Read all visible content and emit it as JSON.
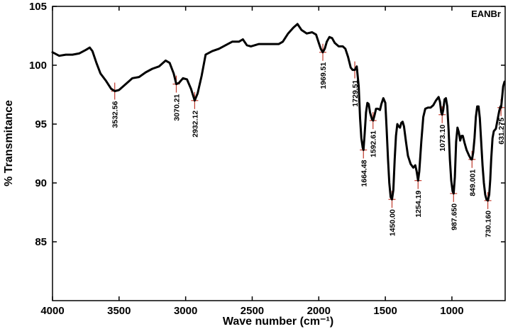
{
  "chart_data": {
    "type": "line",
    "title": "",
    "xlabel": "Wave number (cm⁻¹)",
    "ylabel": "% Transmitance",
    "xlim": [
      4000,
      600
    ],
    "ylim": [
      80,
      105
    ],
    "x_axis_reversed": true,
    "x_ticks": [
      4000,
      3500,
      3000,
      2500,
      2000,
      1500,
      1000
    ],
    "y_ticks": [
      85,
      90,
      95,
      100,
      105
    ],
    "grid": false,
    "legend_label": "EANBr",
    "legend_position": "top-right",
    "line_color": "#000000",
    "marker_color": "#c0392b",
    "series": [
      {
        "name": "EANBr",
        "points": [
          [
            4000,
            101.1
          ],
          [
            3950,
            100.8
          ],
          [
            3900,
            100.9
          ],
          [
            3850,
            100.9
          ],
          [
            3800,
            101.0
          ],
          [
            3750,
            101.3
          ],
          [
            3720,
            101.5
          ],
          [
            3700,
            101.2
          ],
          [
            3670,
            100.2
          ],
          [
            3640,
            99.3
          ],
          [
            3600,
            98.7
          ],
          [
            3560,
            98.0
          ],
          [
            3532,
            97.8
          ],
          [
            3500,
            97.9
          ],
          [
            3450,
            98.4
          ],
          [
            3400,
            98.9
          ],
          [
            3350,
            99.0
          ],
          [
            3300,
            99.4
          ],
          [
            3250,
            99.7
          ],
          [
            3200,
            99.9
          ],
          [
            3150,
            100.4
          ],
          [
            3120,
            100.2
          ],
          [
            3090,
            99.3
          ],
          [
            3070,
            98.4
          ],
          [
            3050,
            98.5
          ],
          [
            3020,
            98.9
          ],
          [
            2990,
            98.8
          ],
          [
            2960,
            98.0
          ],
          [
            2932,
            97.0
          ],
          [
            2910,
            97.6
          ],
          [
            2880,
            99.1
          ],
          [
            2850,
            100.9
          ],
          [
            2800,
            101.2
          ],
          [
            2750,
            101.4
          ],
          [
            2700,
            101.7
          ],
          [
            2650,
            102.0
          ],
          [
            2600,
            102.0
          ],
          [
            2570,
            102.2
          ],
          [
            2540,
            101.7
          ],
          [
            2510,
            101.6
          ],
          [
            2450,
            101.8
          ],
          [
            2400,
            101.8
          ],
          [
            2350,
            101.8
          ],
          [
            2300,
            101.8
          ],
          [
            2270,
            102.0
          ],
          [
            2230,
            102.7
          ],
          [
            2190,
            103.2
          ],
          [
            2160,
            103.5
          ],
          [
            2130,
            103.0
          ],
          [
            2090,
            102.7
          ],
          [
            2050,
            102.8
          ],
          [
            2020,
            102.6
          ],
          [
            2000,
            101.9
          ],
          [
            1985,
            101.4
          ],
          [
            1970,
            101.1
          ],
          [
            1955,
            101.4
          ],
          [
            1940,
            102.0
          ],
          [
            1920,
            102.4
          ],
          [
            1900,
            102.3
          ],
          [
            1880,
            101.9
          ],
          [
            1850,
            101.6
          ],
          [
            1820,
            101.6
          ],
          [
            1800,
            101.4
          ],
          [
            1780,
            100.7
          ],
          [
            1760,
            99.8
          ],
          [
            1745,
            99.6
          ],
          [
            1730,
            99.6
          ],
          [
            1715,
            99.9
          ],
          [
            1700,
            98.2
          ],
          [
            1690,
            95.5
          ],
          [
            1680,
            93.8
          ],
          [
            1670,
            93.0
          ],
          [
            1664,
            92.8
          ],
          [
            1655,
            94.2
          ],
          [
            1645,
            96.0
          ],
          [
            1635,
            96.8
          ],
          [
            1625,
            96.7
          ],
          [
            1615,
            96.0
          ],
          [
            1600,
            95.4
          ],
          [
            1592,
            95.3
          ],
          [
            1580,
            95.8
          ],
          [
            1570,
            96.3
          ],
          [
            1555,
            96.3
          ],
          [
            1540,
            96.2
          ],
          [
            1530,
            96.7
          ],
          [
            1515,
            97.2
          ],
          [
            1500,
            96.8
          ],
          [
            1490,
            94.5
          ],
          [
            1480,
            92.0
          ],
          [
            1470,
            90.0
          ],
          [
            1460,
            88.8
          ],
          [
            1450,
            88.6
          ],
          [
            1440,
            89.4
          ],
          [
            1430,
            92.0
          ],
          [
            1420,
            94.0
          ],
          [
            1410,
            95.0
          ],
          [
            1400,
            94.8
          ],
          [
            1390,
            94.7
          ],
          [
            1380,
            95.1
          ],
          [
            1370,
            95.2
          ],
          [
            1360,
            94.8
          ],
          [
            1345,
            93.5
          ],
          [
            1330,
            92.3
          ],
          [
            1310,
            91.6
          ],
          [
            1290,
            91.3
          ],
          [
            1275,
            91.5
          ],
          [
            1265,
            91.0
          ],
          [
            1254,
            90.2
          ],
          [
            1245,
            91.0
          ],
          [
            1230,
            93.5
          ],
          [
            1215,
            95.6
          ],
          [
            1200,
            96.3
          ],
          [
            1180,
            96.4
          ],
          [
            1160,
            96.4
          ],
          [
            1140,
            96.6
          ],
          [
            1120,
            97.0
          ],
          [
            1100,
            97.3
          ],
          [
            1090,
            96.9
          ],
          [
            1080,
            96.0
          ],
          [
            1073,
            95.8
          ],
          [
            1065,
            96.2
          ],
          [
            1055,
            97.1
          ],
          [
            1045,
            97.2
          ],
          [
            1035,
            96.5
          ],
          [
            1025,
            94.5
          ],
          [
            1015,
            92.0
          ],
          [
            1005,
            90.2
          ],
          [
            995,
            89.3
          ],
          [
            987,
            89.1
          ],
          [
            978,
            90.5
          ],
          [
            968,
            93.5
          ],
          [
            958,
            94.7
          ],
          [
            948,
            94.3
          ],
          [
            938,
            93.6
          ],
          [
            928,
            94.0
          ],
          [
            918,
            94.0
          ],
          [
            905,
            93.4
          ],
          [
            890,
            92.8
          ],
          [
            870,
            92.3
          ],
          [
            855,
            92.0
          ],
          [
            849,
            92.0
          ],
          [
            840,
            92.6
          ],
          [
            830,
            93.8
          ],
          [
            820,
            95.6
          ],
          [
            810,
            96.5
          ],
          [
            800,
            96.5
          ],
          [
            790,
            95.5
          ],
          [
            780,
            93.5
          ],
          [
            770,
            91.5
          ],
          [
            760,
            90.0
          ],
          [
            750,
            89.0
          ],
          [
            740,
            88.6
          ],
          [
            730,
            88.5
          ],
          [
            720,
            89.0
          ],
          [
            712,
            90.3
          ],
          [
            705,
            92.0
          ],
          [
            695,
            93.8
          ],
          [
            685,
            94.4
          ],
          [
            670,
            94.6
          ],
          [
            655,
            95.5
          ],
          [
            645,
            96.1
          ],
          [
            635,
            96.5
          ],
          [
            631,
            96.4
          ],
          [
            625,
            97.0
          ],
          [
            615,
            98.2
          ],
          [
            605,
            98.6
          ]
        ]
      }
    ],
    "peaks": [
      {
        "x": 3532.56,
        "y": 97.8,
        "label": "3532.56",
        "pos": "below"
      },
      {
        "x": 3070.21,
        "y": 98.4,
        "label": "3070.21",
        "pos": "below"
      },
      {
        "x": 2932.12,
        "y": 97.0,
        "label": "2932.12",
        "pos": "below"
      },
      {
        "x": 1969.51,
        "y": 101.1,
        "label": "1969.51",
        "pos": "below"
      },
      {
        "x": 1729.51,
        "y": 99.6,
        "label": "1729.51",
        "pos": "below"
      },
      {
        "x": 1664.48,
        "y": 92.8,
        "label": "1664.48",
        "pos": "below"
      },
      {
        "x": 1592.61,
        "y": 95.3,
        "label": "1592.61",
        "pos": "below"
      },
      {
        "x": 1450.0,
        "y": 88.6,
        "label": "1450.00",
        "pos": "below"
      },
      {
        "x": 1254.19,
        "y": 90.2,
        "label": "1254.19",
        "pos": "below"
      },
      {
        "x": 1073.1,
        "y": 95.8,
        "label": "1073.10",
        "pos": "below"
      },
      {
        "x": 987.65,
        "y": 89.1,
        "label": "987.650",
        "pos": "below"
      },
      {
        "x": 849.001,
        "y": 92.0,
        "label": "849.001",
        "pos": "below"
      },
      {
        "x": 730.16,
        "y": 88.5,
        "label": "730.160",
        "pos": "below"
      },
      {
        "x": 631.275,
        "y": 96.4,
        "label": "631.275",
        "pos": "below"
      }
    ]
  }
}
